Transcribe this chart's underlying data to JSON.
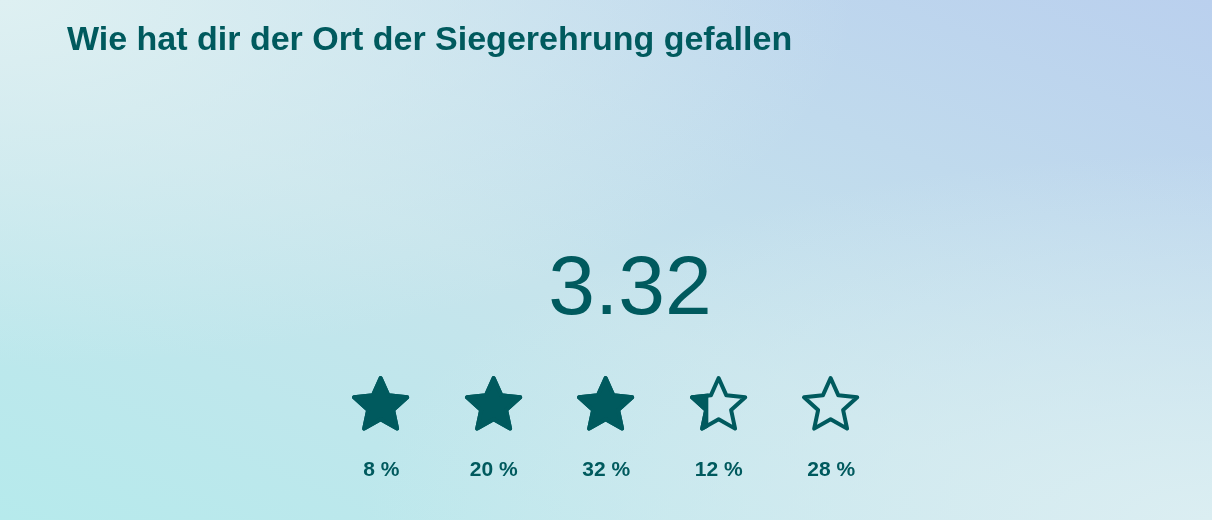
{
  "chart_data": {
    "type": "other",
    "title": "Wie hat dir der Ort der Siegerehrung gefallen",
    "annotations": [
      "3.32"
    ],
    "categories": [
      null,
      null,
      null,
      null,
      null
    ],
    "values": [
      8,
      20,
      32,
      12,
      28
    ],
    "value_labels": [
      "8 %",
      "20 %",
      "32 %",
      "12 %",
      "28 %"
    ],
    "color": "#005a5e"
  }
}
